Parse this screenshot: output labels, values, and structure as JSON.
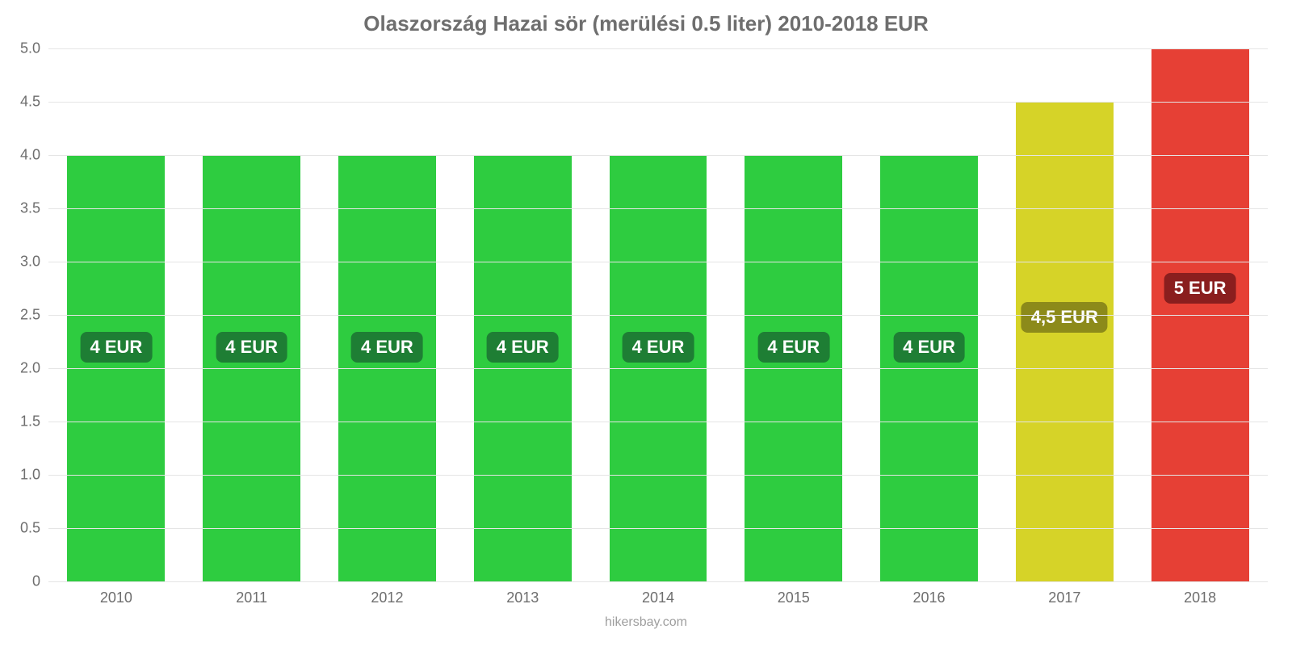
{
  "chart": {
    "type": "bar",
    "title": "Olaszország Hazai sör (merülési 0.5 liter) 2010-2018 EUR",
    "title_color": "#6e6e6e",
    "title_fontsize": 26,
    "title_fontweight": "700",
    "source_text": "hikersbay.com",
    "source_color": "#9e9e9e",
    "source_fontsize": 16,
    "background_color": "#ffffff",
    "categories": [
      "2010",
      "2011",
      "2012",
      "2013",
      "2014",
      "2015",
      "2016",
      "2017",
      "2018"
    ],
    "values": [
      4.0,
      4.0,
      4.0,
      4.0,
      4.0,
      4.0,
      4.0,
      4.5,
      5.0
    ],
    "bar_labels": [
      "4 EUR",
      "4 EUR",
      "4 EUR",
      "4 EUR",
      "4 EUR",
      "4 EUR",
      "4 EUR",
      "4,5 EUR",
      "5 EUR"
    ],
    "bar_colors": [
      "#2ecc40",
      "#2ecc40",
      "#2ecc40",
      "#2ecc40",
      "#2ecc40",
      "#2ecc40",
      "#2ecc40",
      "#d6d328",
      "#e64035"
    ],
    "label_bg_colors": [
      "#1e7e34",
      "#1e7e34",
      "#1e7e34",
      "#1e7e34",
      "#1e7e34",
      "#1e7e34",
      "#1e7e34",
      "#8c8a1a",
      "#8a1e1e"
    ],
    "label_text_color": "#ffffff",
    "label_fontsize": 22,
    "ylim": [
      0,
      5.0
    ],
    "yticks": [
      0,
      0.5,
      1.0,
      1.5,
      2.0,
      2.5,
      3.0,
      3.5,
      4.0,
      4.5,
      5.0
    ],
    "ytick_labels": [
      "0",
      "0.5",
      "1.0",
      "1.5",
      "2.0",
      "2.5",
      "3.0",
      "3.5",
      "4.0",
      "4.5",
      "5.0"
    ],
    "grid_color": "#e5e5e5",
    "axis_label_color": "#6e6e6e",
    "axis_label_fontsize": 18,
    "bar_width_ratio": 0.72,
    "bar_label_y_ratio": 0.55
  }
}
